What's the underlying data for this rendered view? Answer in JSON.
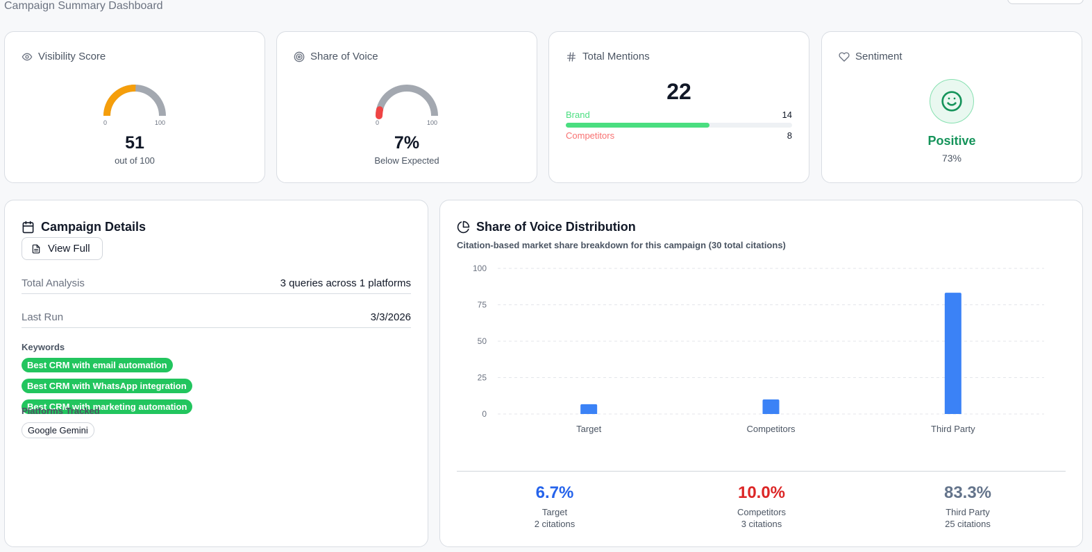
{
  "page": {
    "subtitle": "Campaign Summary Dashboard"
  },
  "metrics": {
    "visibility": {
      "title": "Visibility Score",
      "icon": "eye-icon",
      "value": "51",
      "caption": "out of 100",
      "gauge_min": "0",
      "gauge_max": "100",
      "score": 51,
      "color": "#f59e0b"
    },
    "share_of_voice": {
      "title": "Share of Voice",
      "icon": "target-icon",
      "value": "7%",
      "caption": "Below Expected",
      "gauge_min": "0",
      "gauge_max": "100",
      "score": 7,
      "color": "#ef4444"
    },
    "mentions": {
      "title": "Total Mentions",
      "icon": "hash-icon",
      "value": "22",
      "brand_label": "Brand",
      "brand_count": "14",
      "competitors_label": "Competitors",
      "competitors_count": "8",
      "brand_fraction": 0.636
    },
    "sentiment": {
      "title": "Sentiment",
      "icon": "heart-icon",
      "label": "Positive",
      "percent": "73%"
    }
  },
  "details": {
    "title": "Campaign Details",
    "view_full_label": "View Full",
    "rows": [
      {
        "label": "Total Analysis",
        "value": "3 queries across 1 platforms"
      },
      {
        "label": "Last Run",
        "value": "3/3/2026"
      }
    ],
    "keywords_label": "Keywords",
    "keywords": [
      "Best CRM with email automation",
      "Best CRM with WhatsApp integration",
      "Best CRM with marketing automation"
    ],
    "platforms_label": "Platforms Tracked",
    "platforms": [
      "Google Gemini"
    ]
  },
  "sov_distribution": {
    "title": "Share of Voice Distribution",
    "subtitle": "Citation-based market share breakdown for this campaign (30 total citations)",
    "stats": [
      {
        "percent": "6.7%",
        "label": "Target",
        "citations": "2 citations",
        "color": "#2563eb"
      },
      {
        "percent": "10.0%",
        "label": "Competitors",
        "citations": "3 citations",
        "color": "#dc2626"
      },
      {
        "percent": "83.3%",
        "label": "Third Party",
        "citations": "25 citations",
        "color": "#64748b"
      }
    ]
  },
  "chart_data": {
    "type": "bar",
    "categories": [
      "Target",
      "Competitors",
      "Third Party"
    ],
    "values": [
      6.7,
      10.0,
      83.3
    ],
    "yticks": [
      "0",
      "25",
      "50",
      "75",
      "100"
    ],
    "ylim": [
      0,
      100
    ],
    "grid": true,
    "bar_color": "#3b82f6",
    "title": "",
    "xlabel": "",
    "ylabel": ""
  }
}
